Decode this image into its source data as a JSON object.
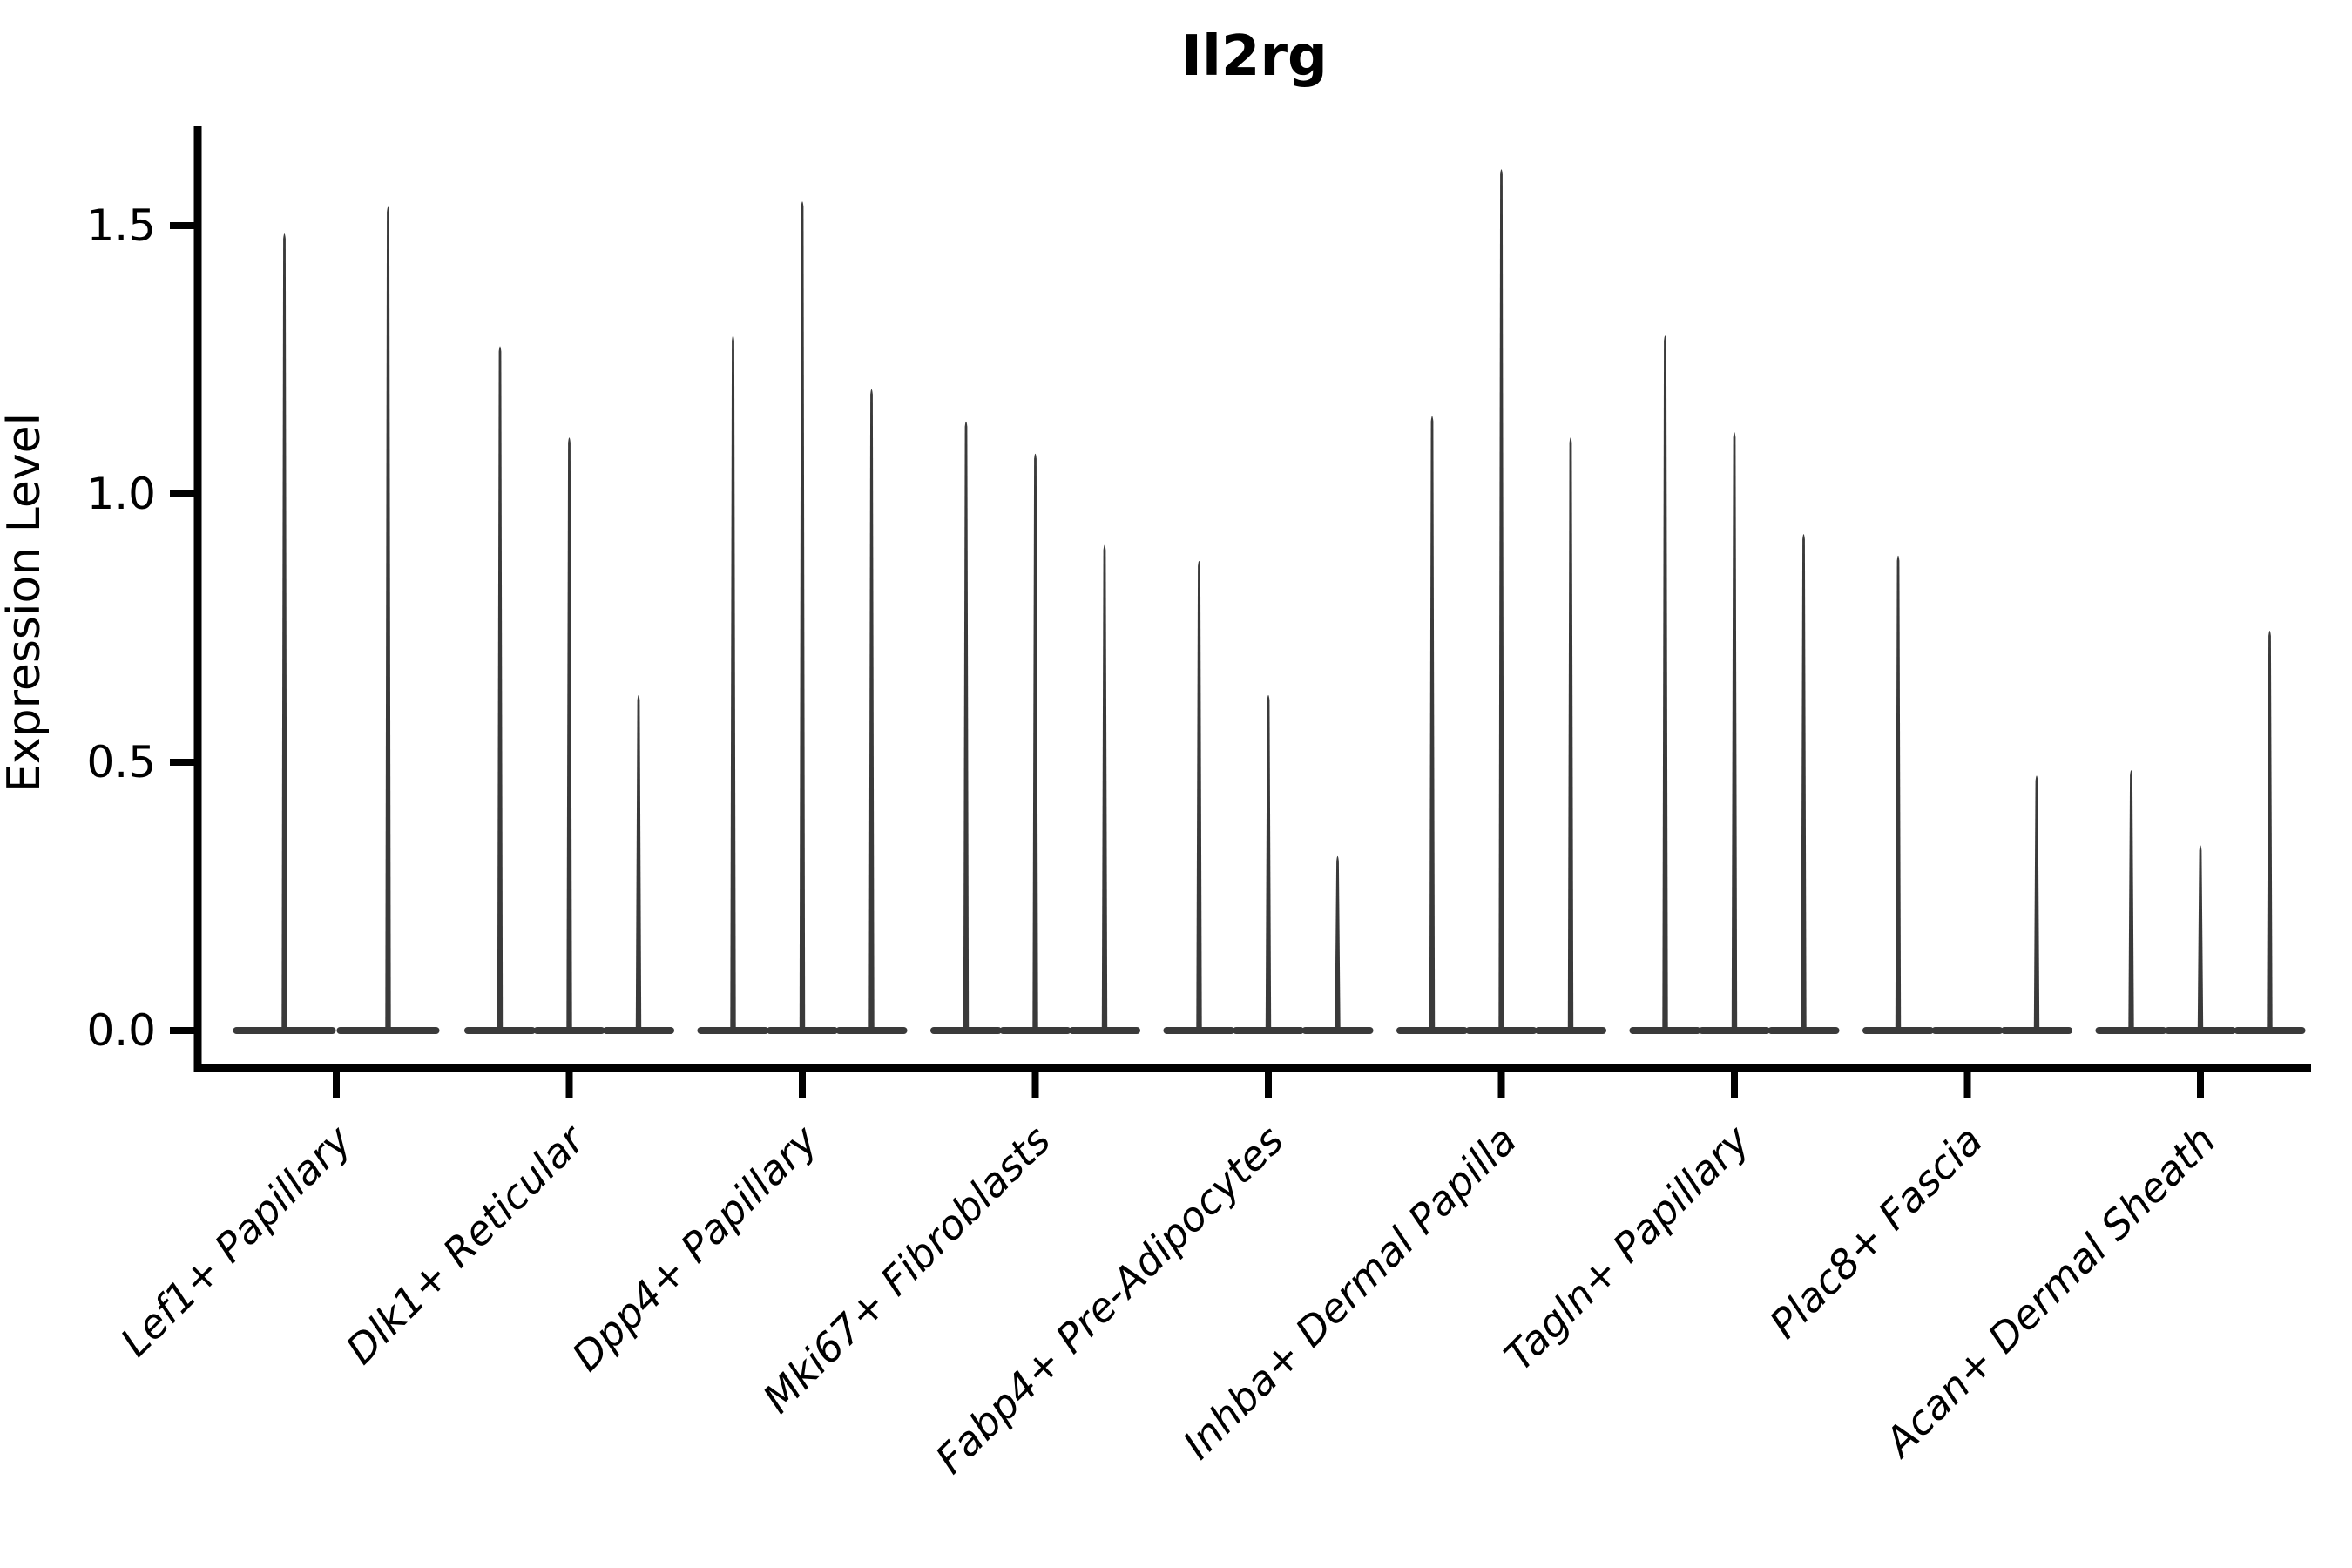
{
  "figure": {
    "background_color": "#ffffff",
    "axis_color": "#000000",
    "violin_color": "#3a3a3a"
  },
  "chart_data": {
    "type": "violin",
    "title": "Il2rg",
    "xlabel": "",
    "ylabel": "Expression Level",
    "y_ticks": [
      0.0,
      0.5,
      1.0,
      1.5
    ],
    "ylim": [
      -0.07,
      1.69
    ],
    "grid": false,
    "legend": "none",
    "categories": [
      "Lef1+ Papillary",
      "Dlk1+ Reticular",
      "Dpp4+ Papillary",
      "Mki67+ Fibroblasts",
      "Fabp4+ Pre-Adipocytes",
      "Inhba+ Dermal Papilla",
      "Tagln+ Papillary",
      "Plac8+ Fascia",
      "Acan+ Dermal Sheath"
    ],
    "groups": [
      {
        "category": "Lef1+ Papillary",
        "violin_maxima": [
          1.49,
          1.54
        ]
      },
      {
        "category": "Dlk1+ Reticular",
        "violin_maxima": [
          1.28,
          1.11,
          0.63
        ]
      },
      {
        "category": "Dpp4+ Papillary",
        "violin_maxima": [
          1.3,
          1.55,
          1.2
        ]
      },
      {
        "category": "Mki67+ Fibroblasts",
        "violin_maxima": [
          1.14,
          1.08,
          0.91
        ]
      },
      {
        "category": "Fabp4+ Pre-Adipocytes",
        "violin_maxima": [
          0.88,
          0.63,
          0.33
        ]
      },
      {
        "category": "Inhba+ Dermal Papilla",
        "violin_maxima": [
          1.15,
          1.61,
          1.11
        ]
      },
      {
        "category": "Tagln+ Papillary",
        "violin_maxima": [
          1.3,
          1.12,
          0.93
        ]
      },
      {
        "category": "Plac8+ Fascia",
        "violin_maxima": [
          0.89,
          0.0,
          0.48
        ]
      },
      {
        "category": "Acan+ Dermal Sheath",
        "violin_maxima": [
          0.49,
          0.35,
          0.75
        ]
      }
    ]
  }
}
